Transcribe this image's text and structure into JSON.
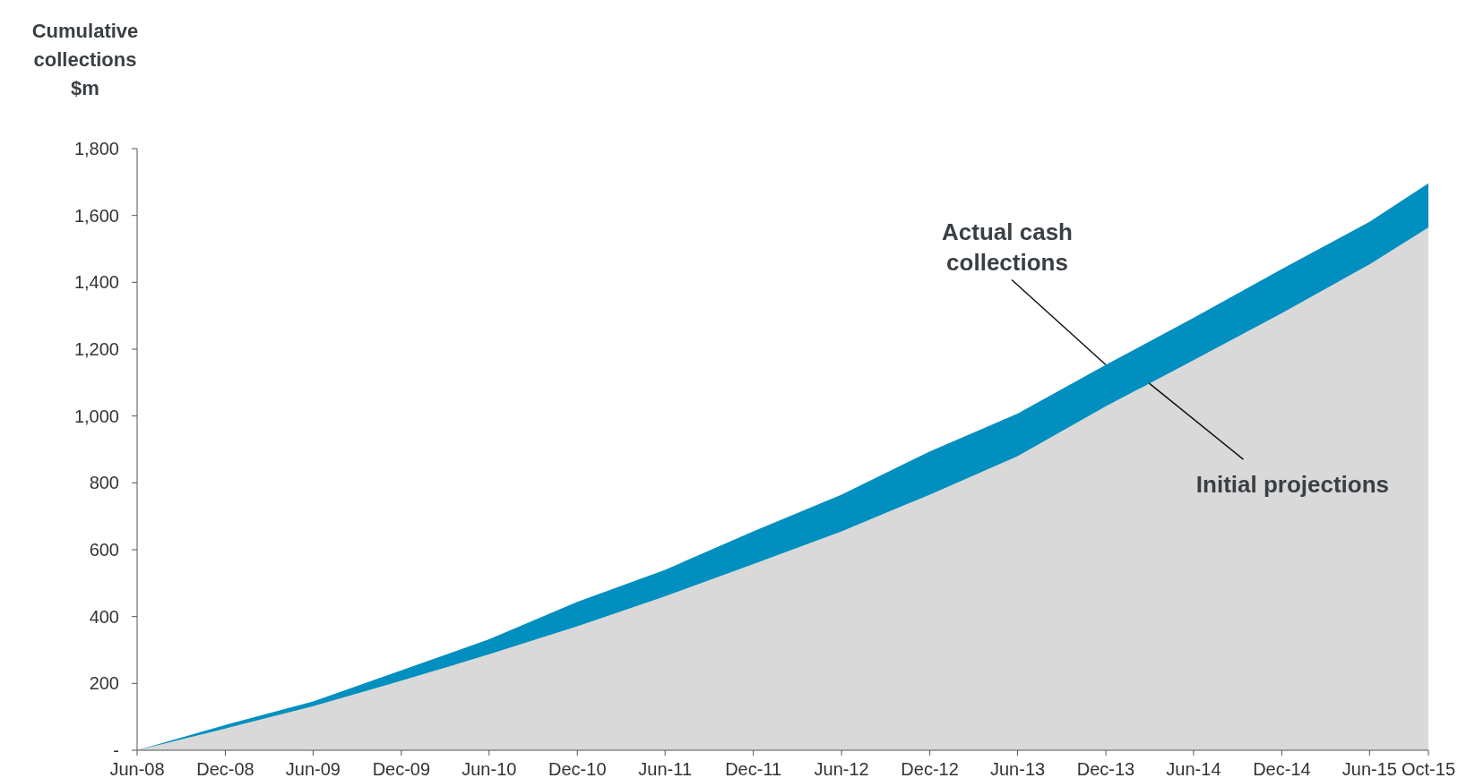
{
  "chart_data": {
    "type": "area",
    "ylabel": "Cumulative collections $m",
    "x": [
      "2008-06",
      "2008-12",
      "2009-06",
      "2009-12",
      "2010-06",
      "2010-12",
      "2011-06",
      "2011-12",
      "2012-06",
      "2012-12",
      "2013-06",
      "2013-12",
      "2014-06",
      "2014-12",
      "2015-06",
      "2015-10"
    ],
    "series": [
      {
        "color": "#008fbf",
        "values": [
          0,
          76,
          146,
          239,
          332,
          444,
          540,
          655,
          765,
          894,
          1007,
          1153,
          1294,
          1440,
          1581,
          1696
        ]
      },
      {
        "color": "#d9d9d9",
        "values": [
          0,
          65,
          132,
          208,
          287,
          371,
          461,
          557,
          655,
          765,
          880,
          1029,
          1167,
          1308,
          1454,
          1564
        ]
      }
    ],
    "xlim": [
      "2008-06",
      "2015-10"
    ],
    "xticks": [
      {
        "value": "2008-06",
        "label": "Jun-08"
      },
      {
        "value": "2008-12",
        "label": "Dec-08"
      },
      {
        "value": "2009-06",
        "label": "Jun-09"
      },
      {
        "value": "2009-12",
        "label": "Dec-09"
      },
      {
        "value": "2010-06",
        "label": "Jun-10"
      },
      {
        "value": "2010-12",
        "label": "Dec-10"
      },
      {
        "value": "2011-06",
        "label": "Jun-11"
      },
      {
        "value": "2011-12",
        "label": "Dec-11"
      },
      {
        "value": "2012-06",
        "label": "Jun-12"
      },
      {
        "value": "2012-12",
        "label": "Dec-12"
      },
      {
        "value": "2013-06",
        "label": "Jun-13"
      },
      {
        "value": "2013-12",
        "label": "Dec-13"
      },
      {
        "value": "2014-06",
        "label": "Jun-14"
      },
      {
        "value": "2014-12",
        "label": "Dec-14"
      },
      {
        "value": "2015-06",
        "label": "Jun-15"
      },
      {
        "value": "2015-10",
        "label": "Oct-15"
      }
    ],
    "ylim": [
      0,
      1800
    ],
    "yticks": [
      {
        "value": 0,
        "label": "-"
      },
      {
        "value": 200,
        "label": "200"
      },
      {
        "value": 400,
        "label": "400"
      },
      {
        "value": 600,
        "label": "600"
      },
      {
        "value": 800,
        "label": "800"
      },
      {
        "value": 1000,
        "label": "1,000"
      },
      {
        "value": 1200,
        "label": "1,200"
      },
      {
        "value": 1400,
        "label": "1,400"
      },
      {
        "value": 1600,
        "label": "1,600"
      },
      {
        "value": 1800,
        "label": "1,800"
      }
    ],
    "annotations": [
      {
        "text": "Actual cash collections",
        "x": "2013-12",
        "y": 1153
      },
      {
        "text": "Initial projections",
        "x": "2014-03",
        "y": 1098
      }
    ],
    "grid": false
  }
}
